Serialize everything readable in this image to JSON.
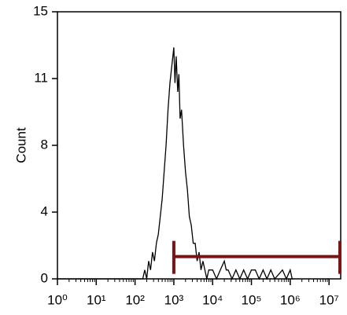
{
  "chart_data": {
    "type": "histogram",
    "y_label": "Count",
    "xscale": "log",
    "xlim": [
      1,
      20000000
    ],
    "ylim": [
      0,
      15
    ],
    "xticks": [
      {
        "value": 1,
        "label": "10⁰"
      },
      {
        "value": 10,
        "label": "10¹"
      },
      {
        "value": 100,
        "label": "10²"
      },
      {
        "value": 1000,
        "label": "10³"
      },
      {
        "value": 10000,
        "label": "10⁴"
      },
      {
        "value": 100000,
        "label": "10⁵"
      },
      {
        "value": 1000000,
        "label": "10⁶"
      },
      {
        "value": 10000000,
        "label": "10⁷"
      }
    ],
    "xminor_ticks": [
      2,
      3,
      4,
      5,
      6,
      7,
      8,
      9,
      20,
      30,
      40,
      50,
      60,
      70,
      80,
      90,
      200,
      300,
      400,
      500,
      600,
      700,
      800,
      900,
      2000,
      3000,
      4000,
      5000,
      6000,
      7000,
      8000,
      9000,
      20000,
      30000,
      40000,
      50000,
      60000,
      70000,
      80000,
      90000,
      200000,
      300000,
      400000,
      500000,
      600000,
      700000,
      800000,
      900000,
      2000000,
      3000000,
      4000000,
      5000000,
      6000000,
      7000000,
      8000000,
      9000000
    ],
    "yticks": [
      0,
      {
        "value": 3.75,
        "label": "4"
      },
      {
        "value": 7.5,
        "label": "8"
      },
      {
        "value": 11.25,
        "label": "11"
      },
      15
    ],
    "series": [
      {
        "color": "#000000",
        "x": [
          1,
          158,
          178,
          200,
          224,
          251,
          282,
          316,
          355,
          398,
          447,
          501,
          562,
          631,
          708,
          794,
          891,
          1000,
          1070,
          1150,
          1260,
          1350,
          1450,
          1580,
          1780,
          2000,
          2240,
          2510,
          2820,
          3160,
          3550,
          3980,
          4470,
          5010,
          5620,
          6310,
          7080,
          7940,
          10000,
          12600,
          15800,
          20000,
          22400,
          25100,
          31600,
          39800,
          50100,
          63100,
          79400,
          100000,
          126000,
          158000,
          200000,
          251000,
          316000,
          398000,
          631000,
          794000,
          1000000,
          1120000,
          1260000
        ],
        "values": [
          0,
          0,
          0.5,
          0,
          1,
          0.5,
          1.5,
          1,
          2,
          2.5,
          3.5,
          4.5,
          6,
          7.5,
          9.5,
          11,
          12,
          13,
          11,
          12.5,
          10.5,
          11.5,
          9,
          9.5,
          7.5,
          6,
          5,
          3.5,
          3,
          2,
          2,
          1,
          1.5,
          0.5,
          1,
          0.5,
          0,
          0.5,
          0.5,
          0,
          0.5,
          1,
          0.5,
          0.5,
          0,
          0.5,
          0,
          0.5,
          0,
          0.5,
          0.5,
          0,
          0.5,
          0,
          0.5,
          0,
          0.5,
          0,
          0.5,
          0,
          0
        ]
      }
    ],
    "gate": {
      "color": "#7b1414",
      "x": [
        1000,
        20000000
      ],
      "y": 1.25
    }
  }
}
